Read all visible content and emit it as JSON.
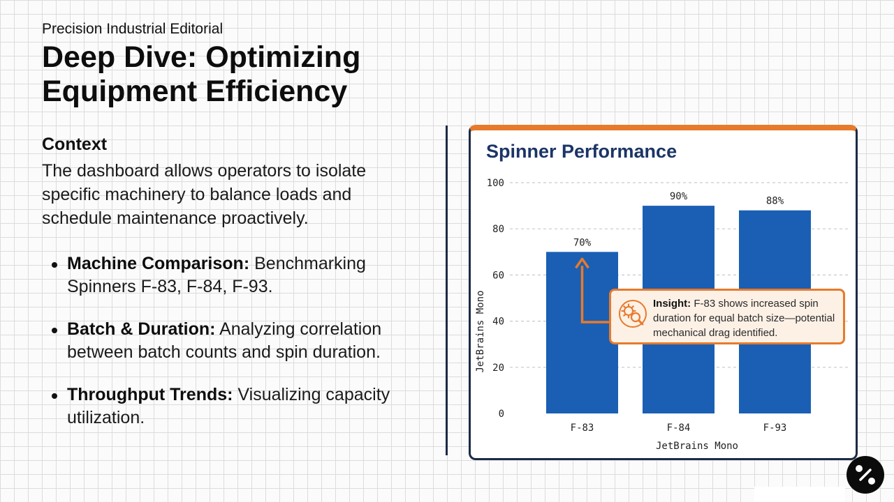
{
  "header": {
    "kicker": "Precision Industrial Editorial",
    "title": "Deep Dive: Optimizing Equipment Efficiency"
  },
  "context": {
    "heading": "Context",
    "body": "The dashboard allows operators to isolate specific machinery to balance loads and schedule maintenance proactively."
  },
  "bullets": [
    {
      "label": "Machine Comparison:",
      "text": "Benchmarking Spinners F-83, F-84, F-93."
    },
    {
      "label": "Batch & Duration:",
      "text": "Analyzing correlation between batch counts and spin duration."
    },
    {
      "label": "Throughput Trends:",
      "text": "Visualizing capacity utilization."
    }
  ],
  "insight": {
    "label": "Insight:",
    "text": "F-83 shows increased spin duration for equal batch size—potential mechanical drag identified.",
    "icon": "gear-magnifier-icon"
  },
  "colors": {
    "accent": "#e77a2b",
    "navy": "#1c2a44",
    "bar": "#1a5fb4",
    "title": "#1c3566"
  },
  "chart_data": {
    "type": "bar",
    "title": "Spinner Performance",
    "categories": [
      "F-83",
      "F-84",
      "F-93"
    ],
    "values": [
      70,
      90,
      88
    ],
    "data_labels": [
      "70%",
      "90%",
      "88%"
    ],
    "yticks": [
      0,
      20,
      40,
      60,
      80,
      100
    ],
    "ylim": [
      0,
      100
    ],
    "xlabel": "JetBrains Mono",
    "ylabel": "JetBrains Mono",
    "grid": true
  }
}
